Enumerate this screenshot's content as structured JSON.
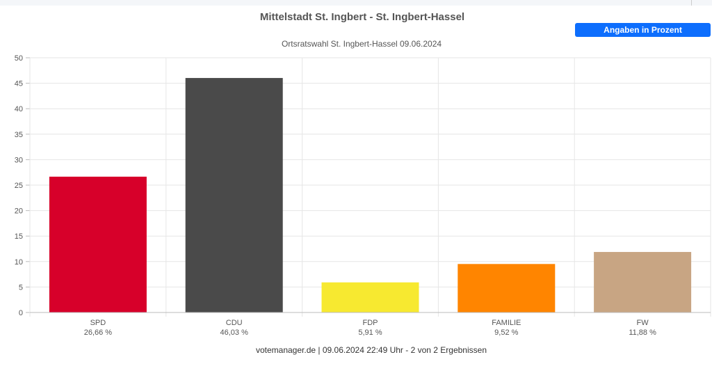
{
  "page": {
    "title": "Mittelstadt St. Ingbert - St. Ingbert-Hassel",
    "subtitle": "Ortsratswahl St. Ingbert-Hassel 09.06.2024",
    "unit_button_label": "Angaben in Prozent",
    "footer": "votemanager.de | 09.06.2024 22:49 Uhr - 2 von 2 Ergebnissen"
  },
  "colors": {
    "accent": "#0d6efd",
    "grid": "#e6e6e6",
    "axis": "#bbbbbb",
    "text": "#555555"
  },
  "chart_data": {
    "type": "bar",
    "categories": [
      "SPD",
      "CDU",
      "FDP",
      "FAMILIE",
      "FW"
    ],
    "values": [
      26.66,
      46.03,
      5.91,
      9.52,
      11.88
    ],
    "value_labels": [
      "26,66 %",
      "46,03 %",
      "5,91 %",
      "9,52 %",
      "11,88 %"
    ],
    "colors": [
      "#d7002a",
      "#4a4a4a",
      "#f7e930",
      "#ff8500",
      "#c8a583"
    ],
    "ylim": [
      0,
      50
    ],
    "yticks": [
      "0",
      "5",
      "10",
      "15",
      "20",
      "25",
      "30",
      "35",
      "40",
      "45",
      "50"
    ],
    "grid": true,
    "legend": "none"
  }
}
